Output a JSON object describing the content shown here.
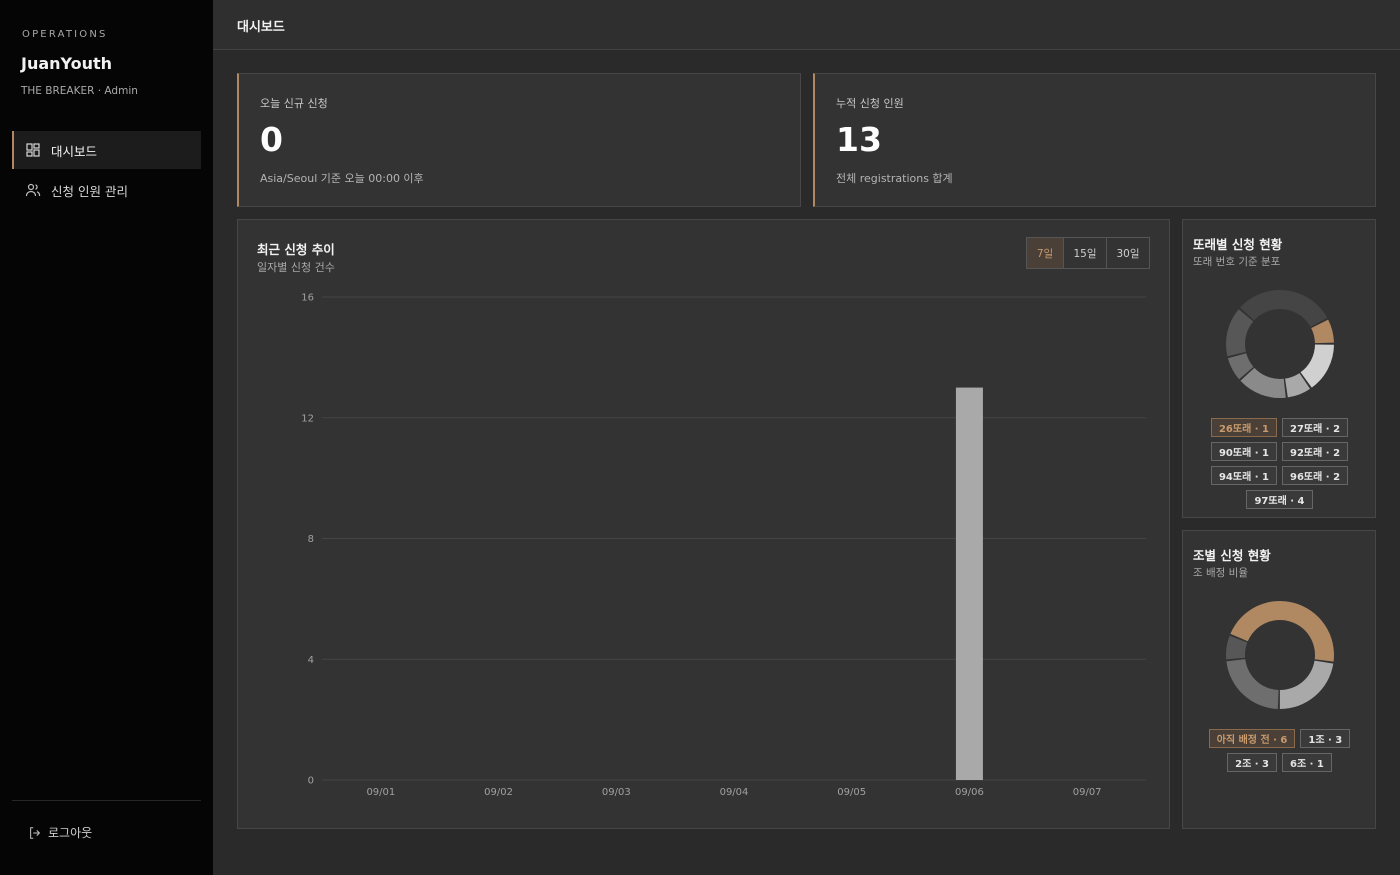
{
  "sidebar": {
    "section_label": "OPERATIONS",
    "brand": "JuanYouth",
    "brand_sub": "THE BREAKER · Admin",
    "items": [
      {
        "label": "대시보드",
        "icon": "dashboard-grid-icon",
        "active": true
      },
      {
        "label": "신청 인원 관리",
        "icon": "users-icon",
        "active": false
      }
    ],
    "logout_label": "로그아웃"
  },
  "header": {
    "title": "대시보드"
  },
  "stats": [
    {
      "label": "오늘 신규 신청",
      "value": "0",
      "sub": "Asia/Seoul 기준 오늘 00:00 이후"
    },
    {
      "label": "누적 신청 인원",
      "value": "13",
      "sub": "전체 registrations 합계"
    }
  ],
  "trend": {
    "title": "최근 신청 추이",
    "subtitle": "일자별 신청 건수",
    "ranges": [
      "7일",
      "15일",
      "30일"
    ],
    "active_range": "7일"
  },
  "chart_data": [
    {
      "type": "bar",
      "title": "최근 신청 추이",
      "subtitle": "일자별 신청 건수",
      "categories": [
        "09/01",
        "09/02",
        "09/03",
        "09/04",
        "09/05",
        "09/06",
        "09/07"
      ],
      "values": [
        0,
        0,
        0,
        0,
        0,
        13,
        0
      ],
      "ylim": [
        0,
        16
      ],
      "yticks": [
        0,
        4,
        8,
        12,
        16
      ],
      "grid": true,
      "color": "#a9a9a9"
    },
    {
      "type": "pie",
      "title": "또래별 신청 현황",
      "subtitle": "또래 번호 기준 분포",
      "labels": [
        "26또래",
        "27또래",
        "90또래",
        "92또래",
        "94또래",
        "96또래",
        "97또래"
      ],
      "values": [
        1,
        2,
        1,
        2,
        1,
        2,
        4
      ],
      "colors": [
        "#b08862",
        "#d0d0d0",
        "#a9a9a9",
        "#8a8a8a",
        "#6e6e6e",
        "#575757",
        "#454545"
      ]
    },
    {
      "type": "pie",
      "title": "조별 신청 현황",
      "subtitle": "조 배정 비율",
      "labels": [
        "아직 배정 전",
        "1조",
        "2조",
        "6조"
      ],
      "values": [
        6,
        3,
        3,
        1
      ],
      "colors": [
        "#b08862",
        "#a9a9a9",
        "#6e6e6e",
        "#575757"
      ]
    }
  ],
  "cohort": {
    "title": "또래별 신청 현황",
    "subtitle": "또래 번호 기준 분포",
    "chips": [
      "26또래 · 1",
      "27또래 · 2",
      "90또래 · 1",
      "92또래 · 2",
      "94또래 · 1",
      "96또래 · 2",
      "97또래 · 4"
    ]
  },
  "team": {
    "title": "조별 신청 현황",
    "subtitle": "조 배정 비율",
    "chips": [
      "아직 배정 전 · 6",
      "1조 · 3",
      "2조 · 3",
      "6조 · 1"
    ]
  },
  "colors": {
    "accent": "#b08862",
    "bar": "#a9a9a9",
    "sidebar_bg": "#050505",
    "main_bg": "#2a2a2a"
  }
}
